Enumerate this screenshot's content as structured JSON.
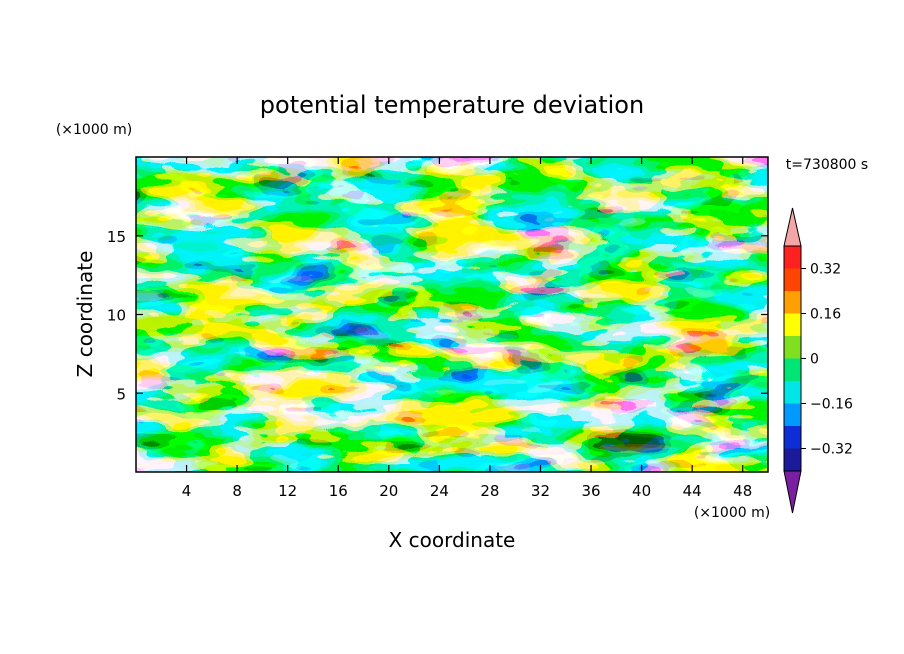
{
  "chart_data": {
    "type": "heatmap",
    "title": "potential temperature deviation",
    "xlabel": "X coordinate",
    "ylabel": "Z coordinate",
    "x_unit": "(×1000 m)",
    "y_unit": "(×1000 m)",
    "time_label": "t=730800 s",
    "xlim": [
      0,
      50
    ],
    "ylim": [
      0,
      20
    ],
    "x_ticks": [
      "4",
      "8",
      "12",
      "16",
      "20",
      "24",
      "28",
      "32",
      "36",
      "40",
      "44",
      "48"
    ],
    "x_tick_values": [
      4,
      8,
      12,
      16,
      20,
      24,
      28,
      32,
      36,
      40,
      44,
      48
    ],
    "y_ticks": [
      "5",
      "10",
      "15"
    ],
    "y_tick_values": [
      5,
      10,
      15
    ],
    "grid": false,
    "colorbar": {
      "position": "right",
      "extend": "both",
      "levels": [
        -0.4,
        -0.32,
        -0.24,
        -0.16,
        -0.08,
        0,
        0.08,
        0.16,
        0.24,
        0.32,
        0.4
      ],
      "labels": [
        "0.32",
        "0.16",
        "0",
        "−0.16",
        "−0.32"
      ],
      "label_values": [
        0.32,
        0.16,
        0,
        -0.16,
        -0.32
      ],
      "colors": [
        "#7b1fa2",
        "#1a1a9a",
        "#0d2dd6",
        "#0099ff",
        "#00e5e5",
        "#00e676",
        "#7fe020",
        "#ffff00",
        "#ffa000",
        "#ff4500",
        "#ff2020",
        "#f4a6a6"
      ]
    }
  }
}
